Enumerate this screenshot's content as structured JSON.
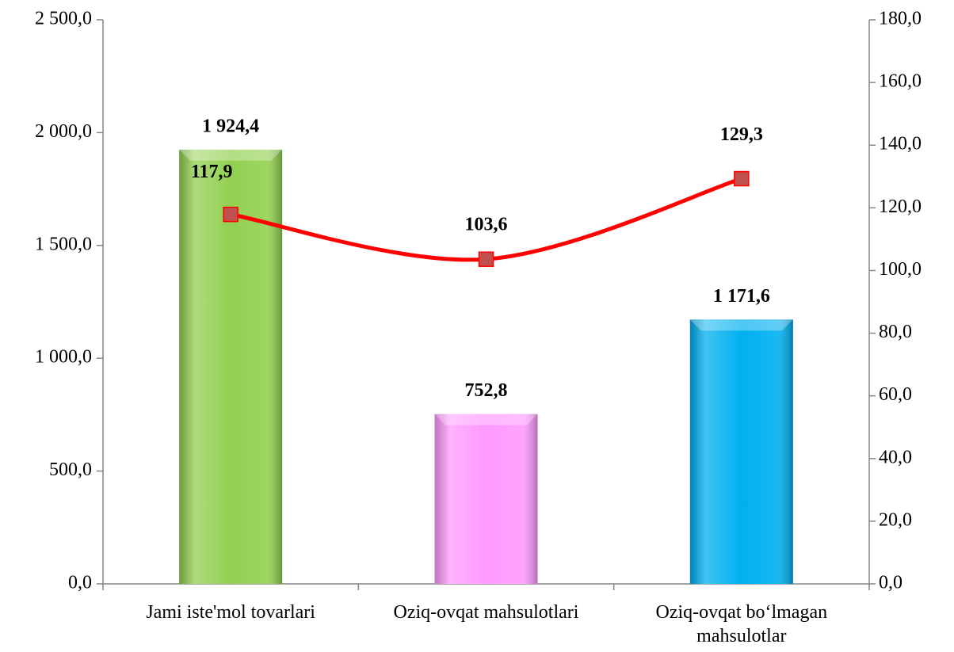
{
  "chart_data": {
    "type": "bar",
    "categories": [
      "Jami iste'mol tovarlari",
      "Oziq-ovqat mahsulotlari",
      "Oziq-ovqat bo‘lmagan mahsulotlar"
    ],
    "series": [
      {
        "type": "bar",
        "colors": [
          "#92d050",
          "#ff99ff",
          "#00b0f0"
        ],
        "values": [
          1924.4,
          752.8,
          1171.6
        ],
        "value_labels": [
          "1 924,4",
          "752,8",
          "1 171,6"
        ]
      },
      {
        "type": "line",
        "axis": "y2",
        "color": "#ff0000",
        "marker_color": "#c0504d",
        "values": [
          117.9,
          103.6,
          129.3
        ],
        "value_labels": [
          "117,9",
          "103,6",
          "129,3"
        ]
      }
    ],
    "ylim": [
      0,
      2500
    ],
    "yticks": [
      {
        "value": 0,
        "label": "0,0"
      },
      {
        "value": 500,
        "label": "500,0"
      },
      {
        "value": 1000,
        "label": "1 000,0"
      },
      {
        "value": 1500,
        "label": "1 500,0"
      },
      {
        "value": 2000,
        "label": "2 000,0"
      },
      {
        "value": 2500,
        "label": "2 500,0"
      }
    ],
    "y2lim": [
      0,
      180
    ],
    "y2ticks": [
      {
        "value": 0,
        "label": "0,0"
      },
      {
        "value": 20,
        "label": "20,0"
      },
      {
        "value": 40,
        "label": "40,0"
      },
      {
        "value": 60,
        "label": "60,0"
      },
      {
        "value": 80,
        "label": "80,0"
      },
      {
        "value": 100,
        "label": "100,0"
      },
      {
        "value": 120,
        "label": "120,0"
      },
      {
        "value": 140,
        "label": "140,0"
      },
      {
        "value": 160,
        "label": "160,0"
      },
      {
        "value": 180,
        "label": "180,0"
      }
    ],
    "smooth": true
  }
}
